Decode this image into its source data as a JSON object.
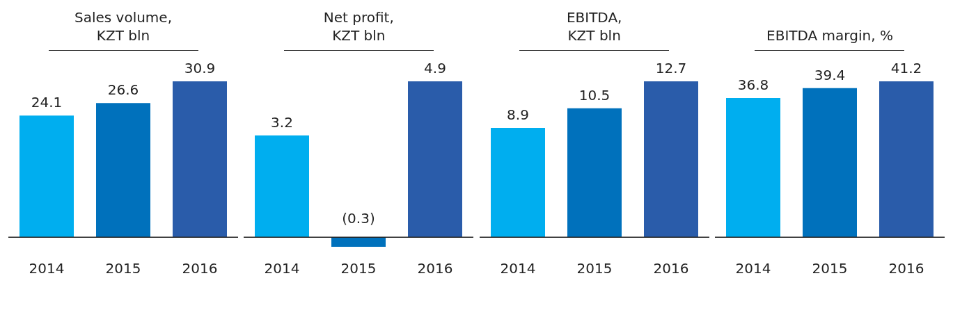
{
  "chart_data": [
    {
      "type": "bar",
      "title": "Sales volume,\nKZT bln",
      "categories": [
        "2014",
        "2015",
        "2016"
      ],
      "values": [
        24.1,
        26.6,
        30.9
      ],
      "colors": [
        "#00aeef",
        "#0071bc",
        "#2a5caa"
      ],
      "tick_labels": "x",
      "data_labels": true
    },
    {
      "type": "bar",
      "title": "Net profit,\nKZT bln",
      "categories": [
        "2014",
        "2015",
        "2016"
      ],
      "values": [
        3.2,
        -0.3,
        4.9
      ],
      "colors": [
        "#00aeef",
        "#0071bc",
        "#2a5caa"
      ],
      "tick_labels": "x",
      "value_labels": [
        "3.2",
        "(0.3)",
        "4.9"
      ]
    },
    {
      "type": "bar",
      "title": "EBITDA,\nKZT bln",
      "categories": [
        "2014",
        "2015",
        "2016"
      ],
      "values": [
        8.9,
        10.5,
        12.7
      ],
      "colors": [
        "#00aeef",
        "#0071bc",
        "#2a5caa"
      ],
      "tick_labels": "x",
      "data_labels": true
    },
    {
      "type": "bar",
      "title": "EBITDA margin, %",
      "categories": [
        "2014",
        "2015",
        "2016"
      ],
      "values": [
        36.8,
        39.4,
        41.2
      ],
      "colors": [
        "#00aeef",
        "#0071bc",
        "#2a5caa"
      ],
      "tick_labels": "x",
      "data_labels": true
    }
  ]
}
